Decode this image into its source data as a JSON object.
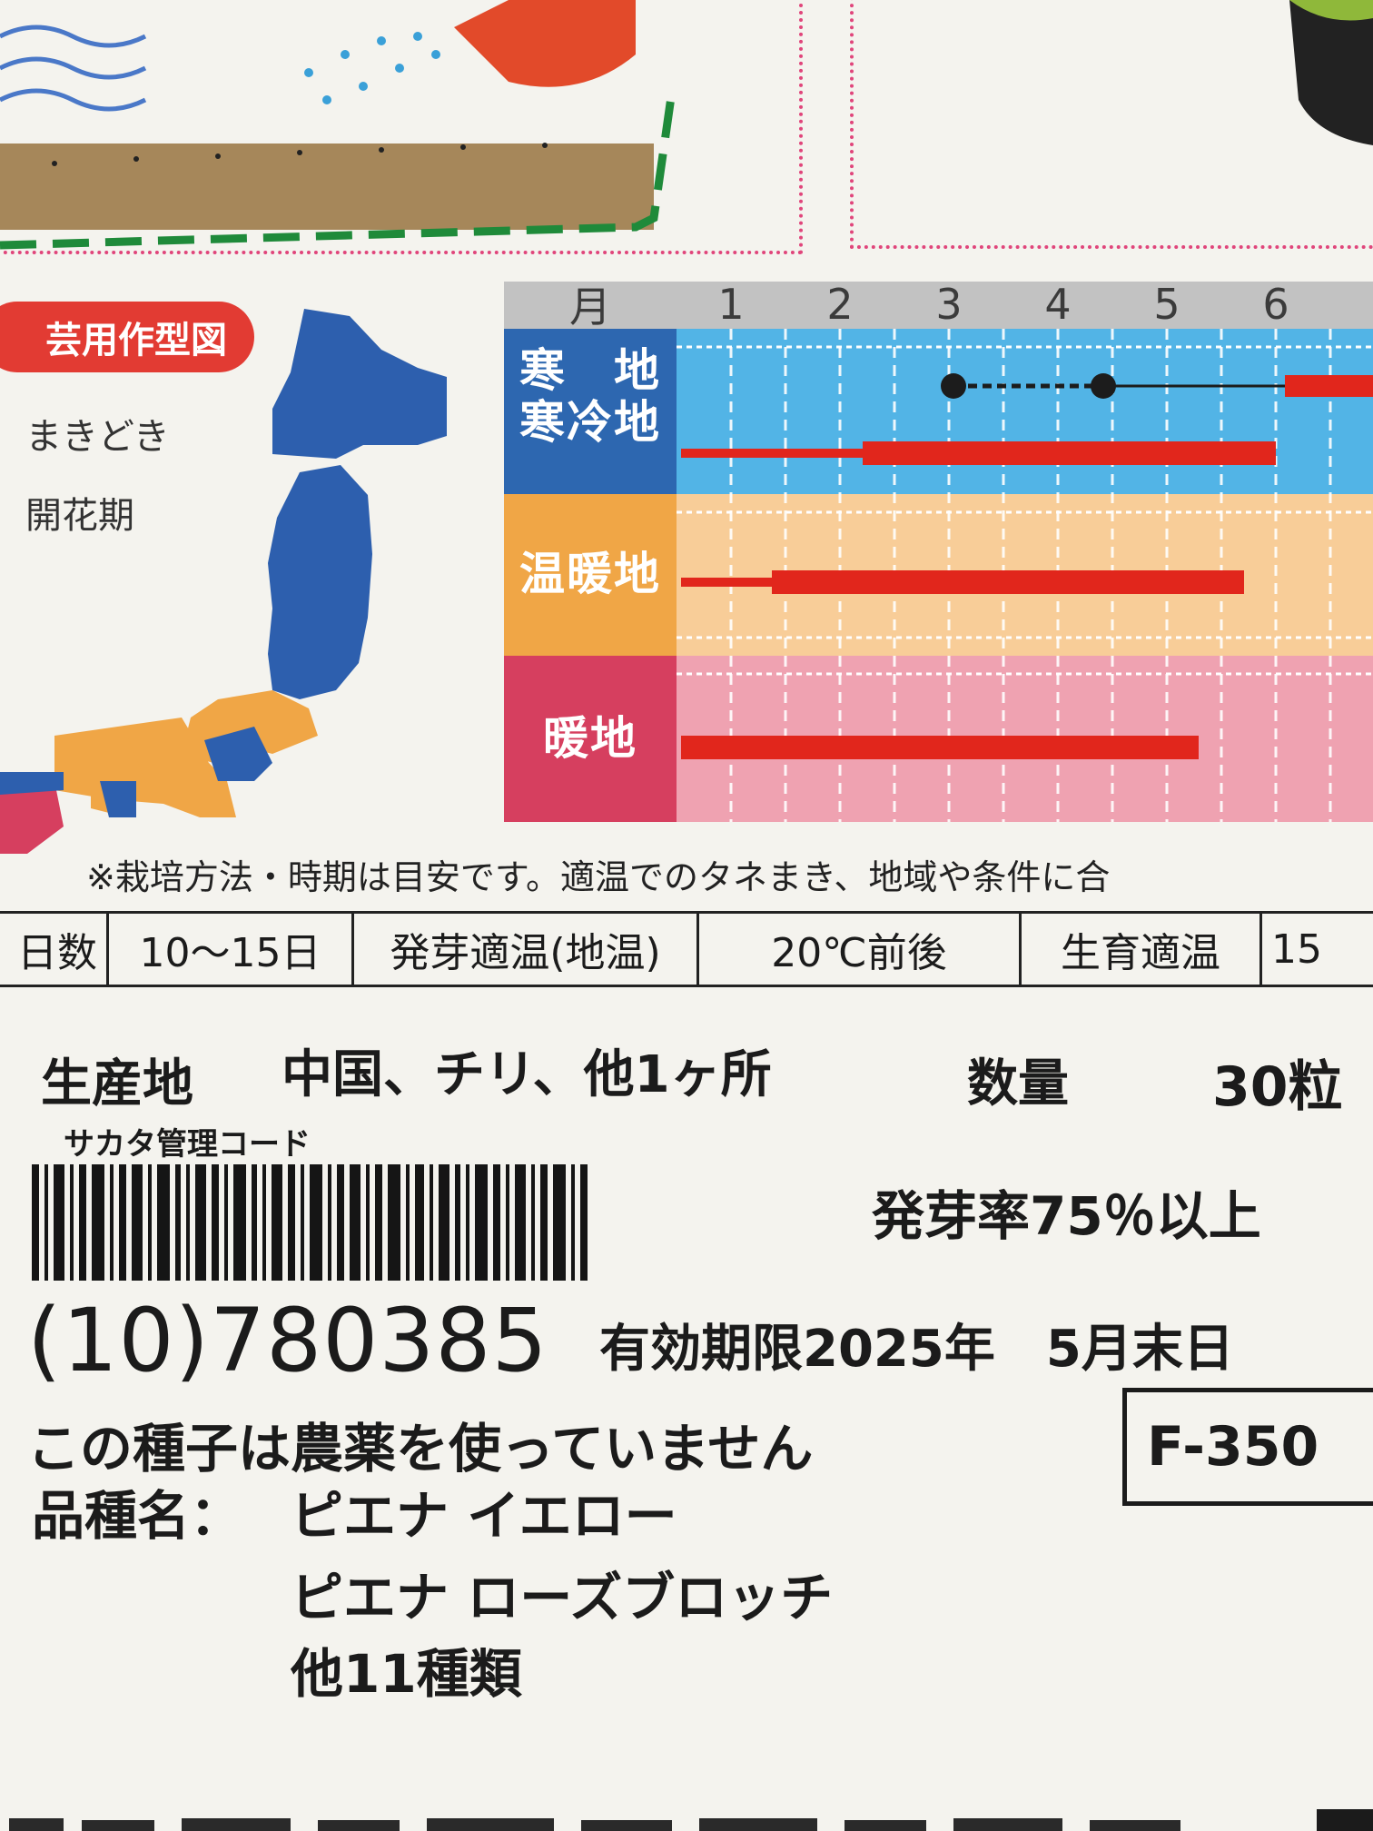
{
  "chart": {
    "legend_title": "芸用作型図",
    "legend_items": [
      "まきどき",
      "開花期"
    ],
    "month_header": "月",
    "months": [
      "1",
      "2",
      "3",
      "4",
      "5",
      "6"
    ],
    "regions": [
      {
        "label_lines": [
          "寒　地",
          "寒冷地"
        ],
        "color": "#2d67b0"
      },
      {
        "label_lines": [
          "温暖地"
        ],
        "color": "#f0a646"
      },
      {
        "label_lines": [
          "暖地"
        ],
        "color": "#d63f5f"
      }
    ],
    "colors": {
      "cold": "#52b4e6",
      "warm": "#f8cd98",
      "hot": "#efa2b1",
      "bar": "#e1261c",
      "sowing": "#1c1c1c"
    }
  },
  "note": "※栽培方法・時期は目安です。適温でのタネまき、地域や条件に合",
  "germination_table": [
    "日数",
    "10～15日",
    "発芽適温(地温)",
    "20℃前後",
    "生育適温",
    "15"
  ],
  "production": {
    "origin_label": "生産地",
    "origin_value": "中国、チリ、他1ヶ所",
    "quantity_label": "数量",
    "quantity_value": "30粒"
  },
  "management_code_label": "サカタ管理コード",
  "germination_rate": "発芽率75％以上",
  "lot_code": "(10)780385",
  "expiry": "有効期限2025年　5月末日",
  "no_pesticide": "この種子は農薬を使っていません",
  "product_code": "F-350",
  "variety_label": "品種名：",
  "varieties": [
    "ピエナ イエロー",
    "ピエナ ローズブロッチ",
    "他11種類"
  ]
}
